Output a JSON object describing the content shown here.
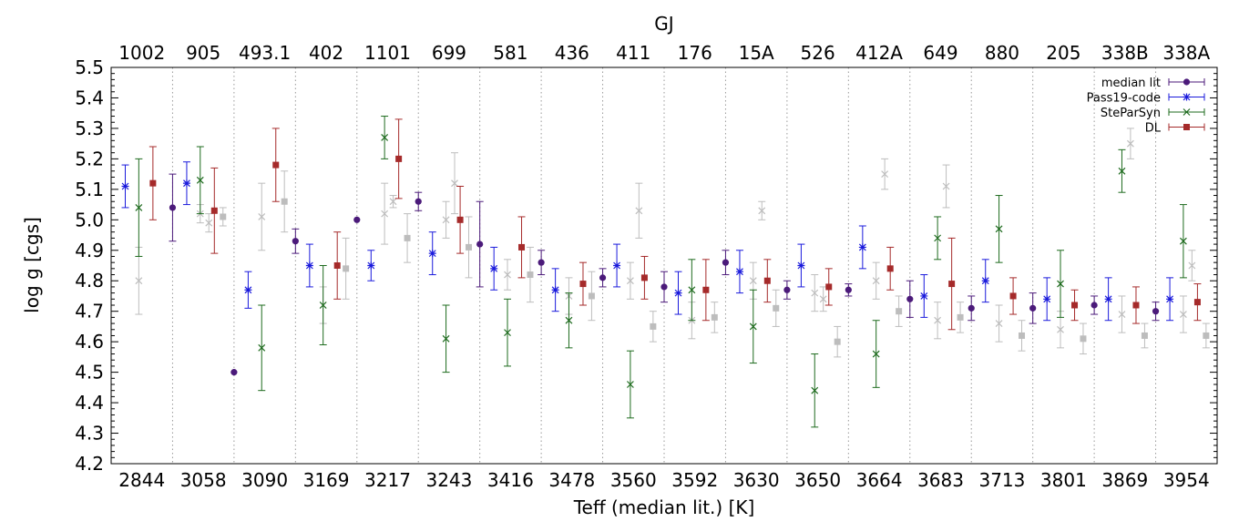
{
  "chart_data": {
    "type": "scatter",
    "title": "GJ",
    "xlabel": "Teff (median lit.) [K]",
    "ylabel": "log g [cgs]",
    "ylim": [
      4.2,
      5.5
    ],
    "yticks": [
      "4.2",
      "4.3",
      "4.4",
      "4.5",
      "4.6",
      "4.7",
      "4.8",
      "4.9",
      "5.0",
      "5.1",
      "5.2",
      "5.3",
      "5.4",
      "5.5"
    ],
    "categories": [
      "2844",
      "3058",
      "3090",
      "3169",
      "3217",
      "3243",
      "3416",
      "3478",
      "3560",
      "3592",
      "3630",
      "3650",
      "3664",
      "3683",
      "3713",
      "3801",
      "3869",
      "3954"
    ],
    "top_categories": [
      "1002",
      "905",
      "493.1",
      "402",
      "1101",
      "699",
      "581",
      "436",
      "411",
      "176",
      "15A",
      "526",
      "412A",
      "649",
      "880",
      "205",
      "338B",
      "338A"
    ],
    "grid": "vertical dotted separators between stars",
    "legend_position": "top-right",
    "colors": {
      "median_lit": "#4b1a7a",
      "pass19": "#1a1adc",
      "steparsyn": "#1e6b1e",
      "dl": "#a52a2a",
      "gray": "#bdbdbd"
    },
    "series": [
      {
        "name": "median lit",
        "color": "#4b1a7a",
        "marker": "circle",
        "values": [
          null,
          5.04,
          4.5,
          4.93,
          5.0,
          5.06,
          4.92,
          4.86,
          4.81,
          4.78,
          4.86,
          4.77,
          4.77,
          4.74,
          4.71,
          4.71,
          4.72,
          4.7
        ],
        "err": [
          null,
          0.11,
          0,
          0.04,
          0,
          0.03,
          0.14,
          0.04,
          0.03,
          0.05,
          0.04,
          0.03,
          0.02,
          0.06,
          0.04,
          0.05,
          0.03,
          0.03
        ]
      },
      {
        "name": "Pass19-code",
        "color": "#1a1adc",
        "marker": "asterisk",
        "values": [
          5.11,
          5.12,
          4.77,
          4.85,
          4.85,
          4.89,
          4.84,
          4.77,
          4.85,
          4.76,
          4.83,
          4.85,
          4.91,
          4.75,
          4.8,
          4.74,
          4.74,
          4.74
        ],
        "err": [
          0.07,
          0.07,
          0.06,
          0.07,
          0.05,
          0.07,
          0.07,
          0.07,
          0.07,
          0.07,
          0.07,
          0.07,
          0.07,
          0.07,
          0.07,
          0.07,
          0.07,
          0.07
        ]
      },
      {
        "name": "SteParSyn",
        "color": "#1e6b1e",
        "marker": "cross",
        "values": [
          5.04,
          5.13,
          4.58,
          4.72,
          5.27,
          4.61,
          4.63,
          4.67,
          4.46,
          4.77,
          4.65,
          4.44,
          4.56,
          4.94,
          4.97,
          4.79,
          5.16,
          4.93
        ],
        "err": [
          0.16,
          0.11,
          0.14,
          0.13,
          0.07,
          0.11,
          0.11,
          0.09,
          0.11,
          0.1,
          0.12,
          0.12,
          0.11,
          0.07,
          0.11,
          0.11,
          0.07,
          0.12
        ]
      },
      {
        "name": "DL",
        "color": "#a52a2a",
        "marker": "square",
        "values": [
          5.12,
          5.03,
          5.18,
          4.85,
          5.2,
          5.0,
          4.91,
          4.79,
          4.81,
          4.77,
          4.8,
          4.78,
          4.84,
          4.79,
          4.75,
          4.72,
          4.72,
          4.73
        ],
        "err": [
          0.12,
          0.14,
          0.12,
          0.11,
          0.13,
          0.11,
          0.1,
          0.07,
          0.07,
          0.1,
          0.07,
          0.06,
          0.07,
          0.15,
          0.06,
          0.05,
          0.06,
          0.06
        ]
      },
      {
        "color": "#bdbdbd",
        "marker": "cross",
        "values": [
          4.8,
          5.02,
          5.01,
          4.72,
          5.02,
          5.0,
          4.82,
          4.75,
          4.8,
          4.67,
          4.8,
          4.76,
          4.8,
          4.67,
          4.66,
          4.64,
          4.69,
          4.69
        ],
        "err": [
          0.11,
          0.03,
          0.11,
          0.06,
          0.1,
          0.06,
          0.05,
          0.06,
          0.06,
          0.06,
          0.06,
          0.06,
          0.06,
          0.06,
          0.06,
          0.06,
          0.06,
          0.06
        ]
      },
      {
        "color": "#bdbdbd",
        "marker": "cross",
        "values": [
          null,
          4.99,
          null,
          null,
          5.06,
          5.12,
          null,
          null,
          5.03,
          null,
          5.03,
          4.74,
          5.15,
          5.11,
          null,
          null,
          5.25,
          4.85
        ],
        "err": [
          0,
          0.03,
          0,
          0,
          0.02,
          0.1,
          0,
          0,
          0.09,
          0,
          0.03,
          0.04,
          0.05,
          0.07,
          0,
          0,
          0.05,
          0.05
        ]
      },
      {
        "color": "#bdbdbd",
        "marker": "square",
        "values": [
          null,
          5.01,
          5.06,
          4.84,
          4.94,
          4.91,
          4.82,
          4.75,
          4.65,
          4.68,
          4.71,
          4.6,
          4.7,
          4.68,
          4.62,
          4.61,
          4.62,
          4.62
        ],
        "err": [
          0,
          0.03,
          0.1,
          0.1,
          0.08,
          0.1,
          0.09,
          0.08,
          0.05,
          0.05,
          0.06,
          0.05,
          0.05,
          0.05,
          0.05,
          0.05,
          0.04,
          0.04
        ]
      }
    ]
  }
}
